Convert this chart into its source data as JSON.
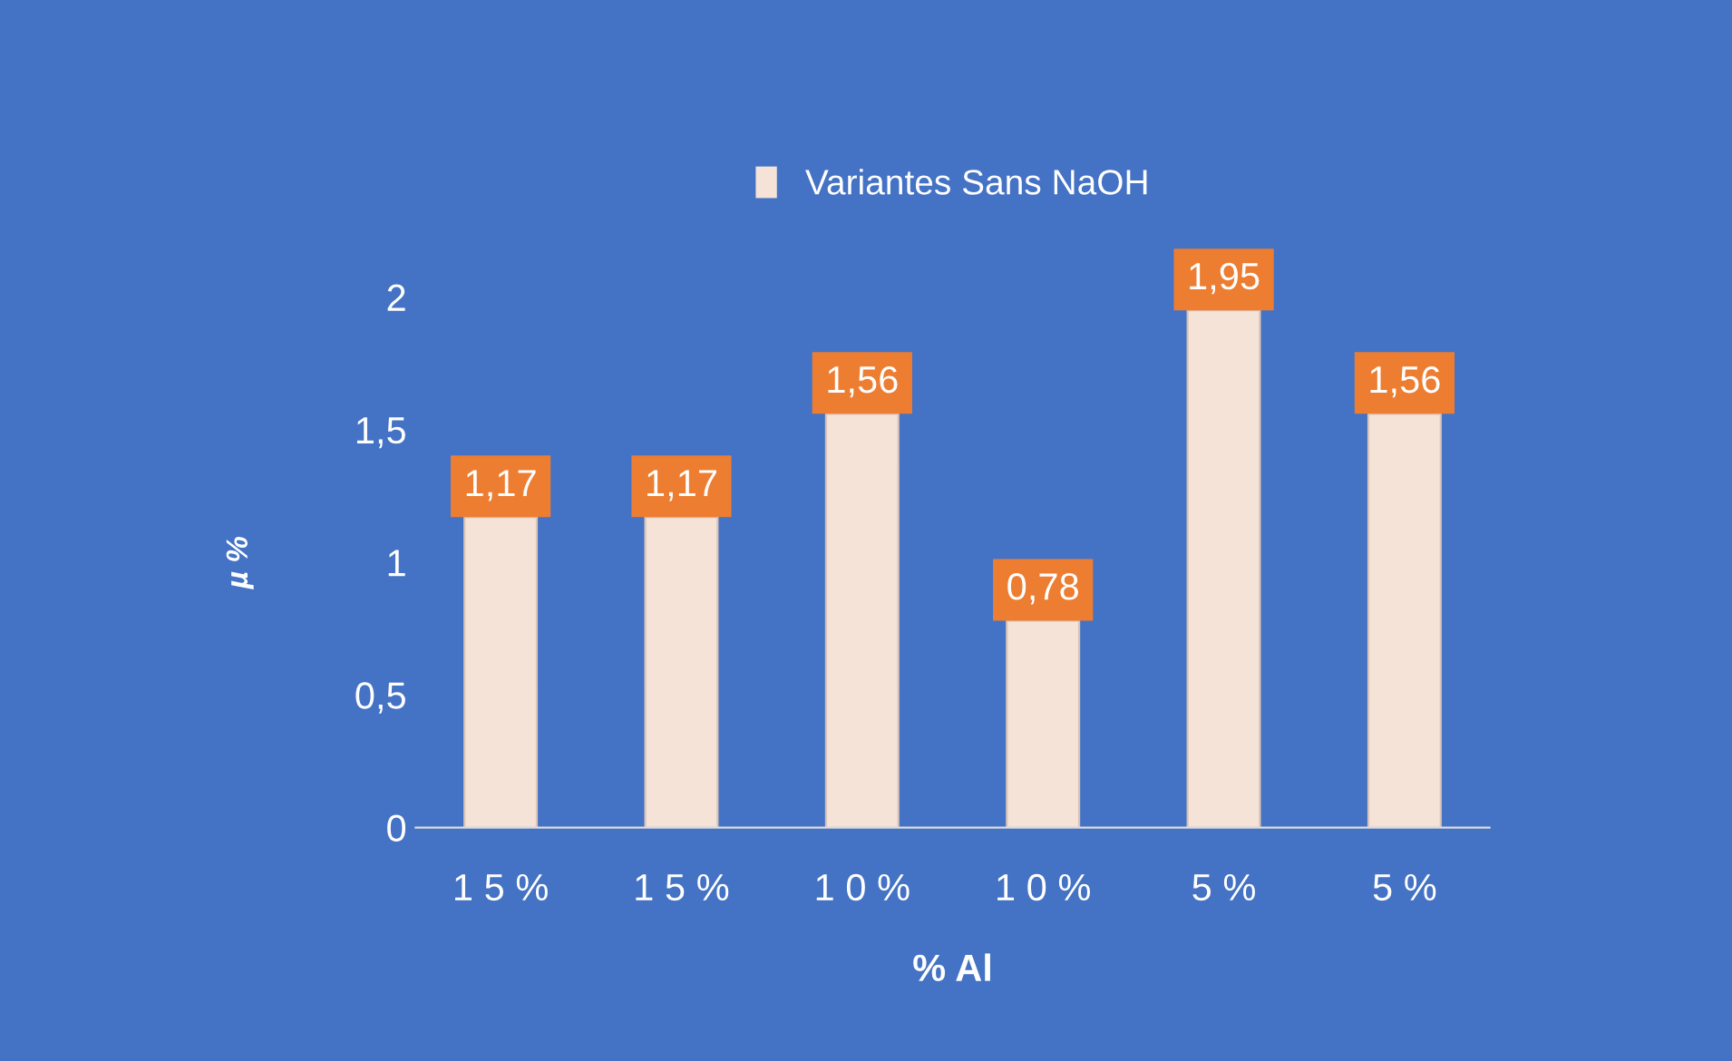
{
  "chart_data": {
    "type": "bar",
    "xlabel": "% Al",
    "ylabel": "µ %",
    "categories": [
      "1 5 %",
      "1 5 %",
      "1 0 %",
      "1 0 %",
      "5 %",
      "5 %"
    ],
    "series": [
      {
        "name": "Variantes Sans NaOH",
        "color": "#f6e3d8",
        "values": [
          1.17,
          1.17,
          1.56,
          0.78,
          1.95,
          1.56
        ],
        "value_labels": [
          "1,17",
          "1,17",
          "1,56",
          "0,78",
          "1,95",
          "1,56"
        ]
      }
    ],
    "ylim": [
      0,
      2
    ],
    "yticks": [
      0,
      {
        "value": 0.5,
        "label": "0,5"
      },
      1,
      {
        "value": 1.5,
        "label": "1,5"
      },
      2
    ],
    "legend": "top",
    "grid": false
  }
}
